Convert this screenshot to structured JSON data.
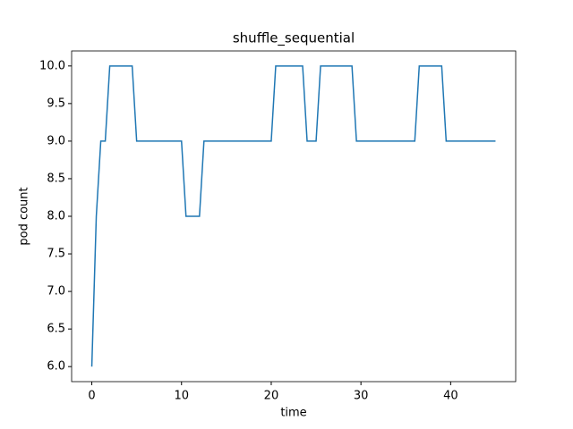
{
  "chart_data": {
    "type": "line",
    "title": "shuffle_sequential",
    "xlabel": "time",
    "ylabel": "pod count",
    "x": [
      0,
      0.5,
      1,
      1.5,
      2,
      4.5,
      5,
      10,
      10.5,
      12,
      12.5,
      20,
      20.5,
      23.5,
      24,
      25,
      25.5,
      29,
      29.5,
      36,
      36.5,
      39,
      39.5,
      45
    ],
    "series": [
      {
        "color": "#1f77b4",
        "values": [
          6,
          8,
          9,
          9,
          10,
          10,
          9,
          9,
          8,
          8,
          9,
          9,
          10,
          10,
          9,
          9,
          10,
          10,
          9,
          9,
          10,
          10,
          9,
          9
        ]
      }
    ],
    "xlim": [
      -2.25,
      47.25
    ],
    "xticks": [
      0,
      10,
      20,
      30,
      40
    ],
    "ylim": [
      5.8,
      10.2
    ],
    "yticks": [
      {
        "value": 6,
        "label": "6.0"
      },
      6.5,
      {
        "value": 7,
        "label": "7.0"
      },
      7.5,
      {
        "value": 8,
        "label": "8.0"
      },
      8.5,
      {
        "value": 9,
        "label": "9.0"
      },
      9.5,
      {
        "value": 10,
        "label": "10.0"
      }
    ],
    "grid": false
  }
}
